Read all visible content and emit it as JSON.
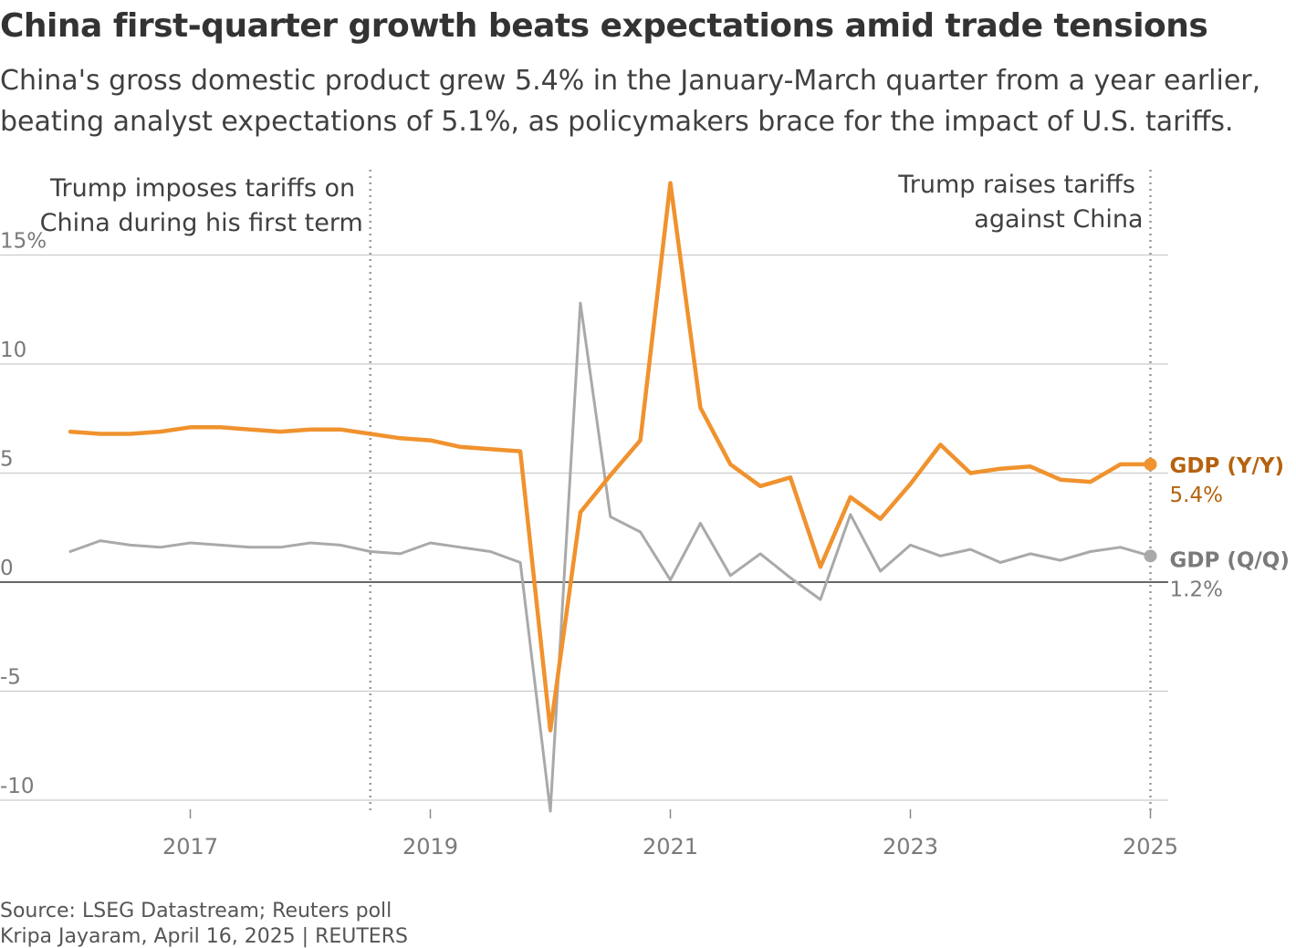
{
  "header": {
    "title": "China first-quarter growth beats expectations amid trade tensions",
    "subtitle": "China's gross domestic product grew 5.4% in the January-March quarter from a year earlier, beating analyst expectations of 5.1%, as policymakers brace for the impact of U.S. tariffs."
  },
  "footer": {
    "source": "Source: LSEG Datastream; Reuters poll",
    "credit": "Kripa Jayaram, April 16, 2025 | REUTERS"
  },
  "colors": {
    "yy": "#f0922e",
    "qq": "#a9a9a9",
    "grid": "#cccccc",
    "zero": "#333333",
    "annotation_line": "#999999"
  },
  "chart_data": {
    "type": "line",
    "title": "China first-quarter growth beats expectations amid trade tensions",
    "xlabel": "",
    "ylabel": "",
    "ylim": [
      -10,
      15
    ],
    "xlim": [
      2016.0,
      2025.1
    ],
    "yticks": [
      {
        "value": 15,
        "label": "15%"
      },
      {
        "value": 10,
        "label": "10"
      },
      {
        "value": 5,
        "label": "5"
      },
      {
        "value": 0,
        "label": "0"
      },
      {
        "value": -5,
        "label": "-5"
      },
      {
        "value": -10,
        "label": "-10"
      }
    ],
    "xticks": [
      {
        "value": 2017,
        "label": "2017"
      },
      {
        "value": 2019,
        "label": "2019"
      },
      {
        "value": 2021,
        "label": "2021"
      },
      {
        "value": 2023,
        "label": "2023"
      },
      {
        "value": 2025,
        "label": "2025"
      }
    ],
    "x": [
      2016.0,
      2016.25,
      2016.5,
      2016.75,
      2017.0,
      2017.25,
      2017.5,
      2017.75,
      2018.0,
      2018.25,
      2018.5,
      2018.75,
      2019.0,
      2019.25,
      2019.5,
      2019.75,
      2020.0,
      2020.25,
      2020.5,
      2020.75,
      2021.0,
      2021.25,
      2021.5,
      2021.75,
      2022.0,
      2022.25,
      2022.5,
      2022.75,
      2023.0,
      2023.25,
      2023.5,
      2023.75,
      2024.0,
      2024.25,
      2024.5,
      2024.75,
      2025.0
    ],
    "series": [
      {
        "name": "GDP (Y/Y)",
        "label": "GDP (Y/Y)",
        "last_value_label": "5.4%",
        "values": [
          6.9,
          6.8,
          6.8,
          6.9,
          7.1,
          7.1,
          7.0,
          6.9,
          7.0,
          7.0,
          6.8,
          6.6,
          6.5,
          6.2,
          6.1,
          6.0,
          -6.8,
          3.2,
          4.9,
          6.5,
          18.3,
          8.0,
          5.4,
          4.4,
          4.8,
          0.7,
          3.9,
          2.9,
          4.5,
          6.3,
          5.0,
          5.2,
          5.3,
          4.7,
          4.6,
          5.4,
          5.4
        ]
      },
      {
        "name": "GDP (Q/Q)",
        "label": "GDP (Q/Q)",
        "last_value_label": "1.2%",
        "values": [
          1.4,
          1.9,
          1.7,
          1.6,
          1.8,
          1.7,
          1.6,
          1.6,
          1.8,
          1.7,
          1.4,
          1.3,
          1.8,
          1.6,
          1.4,
          0.9,
          -10.5,
          12.8,
          3.0,
          2.3,
          0.1,
          2.7,
          0.3,
          1.3,
          0.2,
          -0.8,
          3.1,
          0.5,
          1.7,
          1.2,
          1.5,
          0.9,
          1.3,
          1.0,
          1.4,
          1.6,
          1.2
        ]
      }
    ],
    "annotations": [
      {
        "x": 2018.5,
        "lines": [
          "Trump imposes tariffs on",
          "China during his first term"
        ]
      },
      {
        "x": 2025.0,
        "lines": [
          "Trump raises tariffs",
          "against China"
        ]
      }
    ]
  }
}
